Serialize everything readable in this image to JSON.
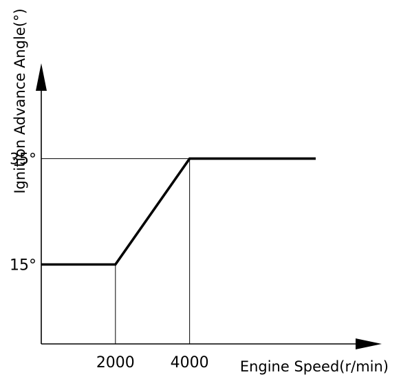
{
  "chart_data": {
    "type": "line",
    "xlabel": "Engine Speed(r/min)",
    "ylabel": "Ignition Advance Angle(°)",
    "x_ticks": [
      {
        "value": 2000,
        "label": "2000"
      },
      {
        "value": 4000,
        "label": "4000"
      }
    ],
    "y_ticks": [
      {
        "value": 15,
        "label": "15°"
      },
      {
        "value": 35,
        "label": "35°"
      }
    ],
    "xlim": [
      0,
      9200
    ],
    "ylim": [
      0,
      53
    ],
    "grid": false,
    "series": [
      {
        "points": [
          {
            "x": 0,
            "y": 15
          },
          {
            "x": 2000,
            "y": 15
          },
          {
            "x": 4000,
            "y": 35
          },
          {
            "x": 7400,
            "y": 35
          }
        ]
      }
    ],
    "guide_lines": [
      {
        "orientation": "vertical",
        "x": 2000,
        "y_to": 15
      },
      {
        "orientation": "vertical",
        "x": 4000,
        "y_to": 35
      },
      {
        "orientation": "horizontal",
        "y": 35,
        "x_to": 4000
      }
    ]
  }
}
